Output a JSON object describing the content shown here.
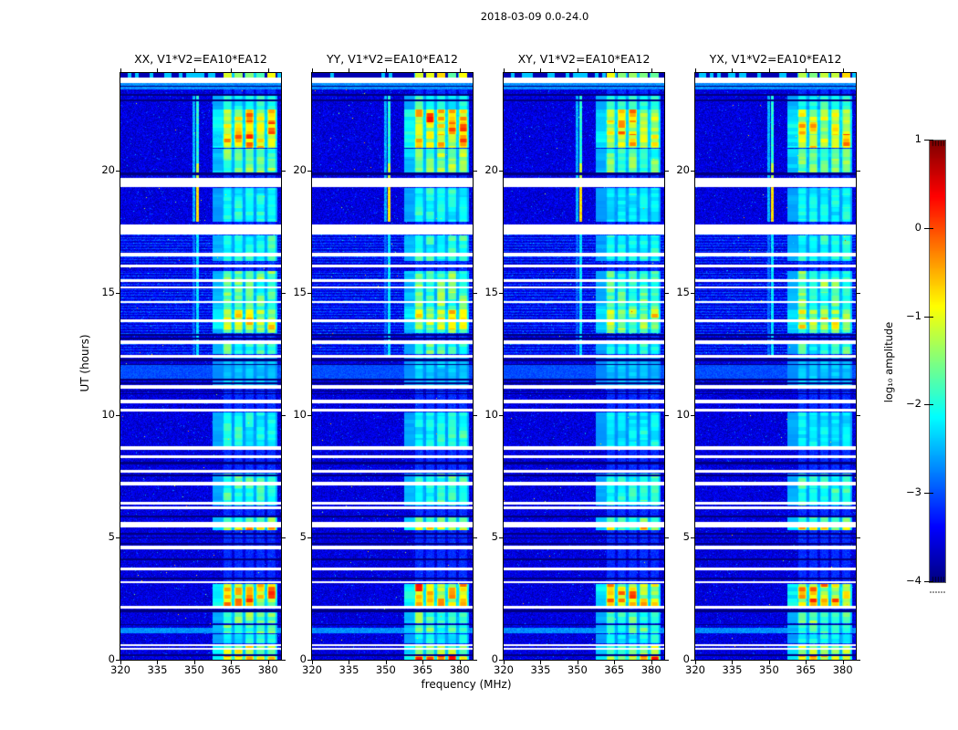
{
  "figure": {
    "title": "2018-03-09 0.0-24.0",
    "xlabel": "frequency (MHz)",
    "ylabel": "UT (hours)",
    "colorbar_label": "log₁₀ amplitude"
  },
  "chart_data": {
    "type": "heatmap",
    "title": "2018-03-09 0.0-24.0",
    "xlabel": "frequency (MHz)",
    "ylabel": "UT (hours)",
    "x_range_mhz": [
      320,
      385.3
    ],
    "x_ticks": [
      320,
      335,
      350,
      365,
      380
    ],
    "y_range_hours": [
      0,
      24
    ],
    "y_ticks": [
      0,
      5,
      10,
      15,
      20
    ],
    "colorbar": {
      "label": "log₁₀ amplitude",
      "tick_labels": [
        "1",
        "0",
        "−1",
        "−2",
        "−3",
        "−4"
      ],
      "ticks": [
        1,
        0,
        -1,
        -2,
        -3,
        -4
      ],
      "vmin": -4,
      "vmax": 1,
      "colormap": "jet"
    },
    "panels": [
      {
        "key": "XX",
        "title": "XX, V1*V2=EA10*EA12",
        "brightness": 1.0,
        "seed": 1
      },
      {
        "key": "YY",
        "title": "YY, V1*V2=EA10*EA12",
        "brightness": 1.06,
        "seed": 2
      },
      {
        "key": "XY",
        "title": "XY, V1*V2=EA10*EA12",
        "brightness": 0.93,
        "seed": 3
      },
      {
        "key": "YX",
        "title": "YX, V1*V2=EA10*EA12",
        "brightness": 0.96,
        "seed": 4
      }
    ],
    "features": {
      "background_log_amp": -3.55,
      "persistent_column_wash": 0.12,
      "white_gaps_hours": [
        [
          23.6,
          23.8
        ],
        [
          19.33,
          19.7
        ],
        [
          17.38,
          17.79
        ],
        [
          16.48,
          16.66
        ],
        [
          16.05,
          16.16
        ],
        [
          15.45,
          15.56
        ],
        [
          15.18,
          15.28
        ],
        [
          14.58,
          14.68
        ],
        [
          13.8,
          13.92
        ],
        [
          12.93,
          13.06
        ],
        [
          12.35,
          12.48
        ],
        [
          11.1,
          11.22
        ],
        [
          10.49,
          10.62
        ],
        [
          10.15,
          10.26
        ],
        [
          8.6,
          8.72
        ],
        [
          8.25,
          8.35
        ],
        [
          7.65,
          7.76
        ],
        [
          7.14,
          7.27
        ],
        [
          6.35,
          6.46
        ],
        [
          6.16,
          6.26
        ],
        [
          5.42,
          5.63
        ],
        [
          4.52,
          4.65
        ],
        [
          3.66,
          3.76
        ],
        [
          3.12,
          3.22
        ],
        [
          2.08,
          2.2
        ],
        [
          0.56,
          0.65
        ],
        [
          0.42,
          0.5
        ]
      ],
      "black_lines_hours": [
        [
          23.43,
          23.47
        ],
        [
          23.08,
          23.13
        ],
        [
          22.84,
          22.9
        ],
        [
          19.82,
          19.95
        ],
        [
          13.26,
          13.34
        ],
        [
          13.1,
          13.17
        ],
        [
          12.2,
          12.3
        ],
        [
          12.05,
          12.11
        ],
        [
          11.42,
          11.5
        ],
        [
          11.28,
          11.34
        ],
        [
          10.85,
          10.91
        ],
        [
          10.96,
          11.02
        ],
        [
          8.0,
          8.1
        ],
        [
          7.5,
          7.57
        ],
        [
          5.84,
          5.9
        ],
        [
          5.12,
          5.18
        ],
        [
          4.95,
          5.02
        ],
        [
          4.7,
          4.77
        ],
        [
          4.08,
          4.15
        ],
        [
          3.28,
          3.35
        ],
        [
          1.95,
          2.06
        ],
        [
          1.4,
          1.47
        ],
        [
          0.15,
          0.21
        ]
      ],
      "stripe_texture_hours": [
        [
          13.3,
          15.9
        ],
        [
          16.25,
          17.38
        ],
        [
          12.5,
          12.91
        ]
      ],
      "smooth_block_hours": [
        11.5,
        12.05
      ],
      "cyan_band_hours": [
        [
          23.32,
          23.6
        ],
        [
          1.08,
          1.32
        ]
      ],
      "top_strip_hours": [
        23.82,
        24.0
      ],
      "emission_columns_mhz": {
        "centers": [
          363.5,
          368.0,
          372.5,
          377.0,
          381.5
        ],
        "width": 3.7,
        "leading_band": [
          357.5,
          361.8
        ],
        "gap_glow": 0.28
      },
      "emission_blocks": [
        {
          "hours": [
            20.95,
            22.5
          ],
          "amp": 1.0
        },
        {
          "hours": [
            22.5,
            23.08
          ],
          "amp": 0.4
        },
        {
          "hours": [
            19.95,
            20.9
          ],
          "amp": 0.6
        },
        {
          "hours": [
            17.9,
            19.3
          ],
          "amp": 0.35
        },
        {
          "hours": [
            16.3,
            17.35
          ],
          "amp": 0.4
        },
        {
          "hours": [
            13.5,
            14.35
          ],
          "amp": 0.8
        },
        {
          "hours": [
            13.35,
            15.9
          ],
          "amp": 0.55
        },
        {
          "hours": [
            12.5,
            12.9
          ],
          "amp": 0.45
        },
        {
          "hours": [
            11.25,
            12.45
          ],
          "amp": 0.2
        },
        {
          "hours": [
            8.75,
            10.1
          ],
          "amp": 0.35
        },
        {
          "hours": [
            6.3,
            7.6
          ],
          "amp": 0.45
        },
        {
          "hours": [
            5.3,
            5.42
          ],
          "amp": 0.9
        },
        {
          "hours": [
            5.63,
            5.85
          ],
          "amp": 0.5
        },
        {
          "hours": [
            2.2,
            3.1
          ],
          "amp": 1.0
        },
        {
          "hours": [
            1.5,
            2.06
          ],
          "amp": 0.55
        },
        {
          "hours": [
            1.08,
            1.4
          ],
          "amp": 0.5
        },
        {
          "hours": [
            0.66,
            1.05
          ],
          "amp": 0.35
        },
        {
          "hours": [
            0.22,
            0.56
          ],
          "amp": 0.7
        },
        {
          "hours": [
            0.0,
            0.14
          ],
          "amp": 1.1
        }
      ],
      "rfi_lines_mhz": [
        {
          "freq": 351.4,
          "segments": [
            {
              "hours": [
                17.9,
                19.32
              ],
              "log_amp": -0.75
            },
            {
              "hours": [
                19.7,
                20.3
              ],
              "log_amp": -1.15
            },
            {
              "hours": [
                20.3,
                23.1
              ],
              "log_amp": -1.95
            },
            {
              "hours": [
                12.45,
                17.38
              ],
              "log_amp": -2.25
            }
          ]
        },
        {
          "freq": 349.8,
          "segments": [
            {
              "hours": [
                17.9,
                23.1
              ],
              "log_amp": -2.5
            },
            {
              "hours": [
                12.45,
                17.38
              ],
              "log_amp": -2.9
            }
          ]
        }
      ]
    }
  }
}
